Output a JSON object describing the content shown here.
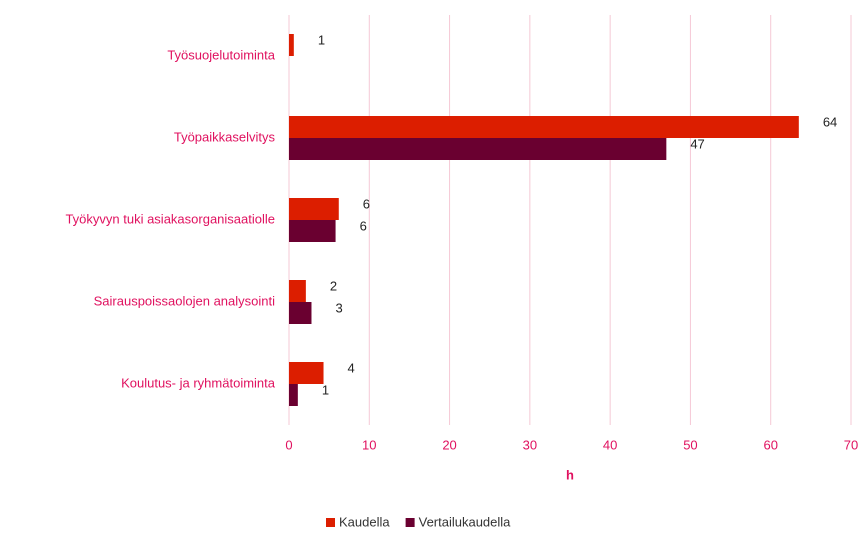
{
  "chart_data": {
    "type": "bar",
    "orientation": "horizontal",
    "categories": [
      "Työsuojelutoiminta",
      "Työpaikkaselvitys",
      "Työkyvyn tuki asiakasorganisaatiolle",
      "Sairauspoissaolojen analysointi",
      "Koulutus- ja ryhmätoiminta"
    ],
    "series": [
      {
        "name": "Kaudella",
        "color": "#dc1e00",
        "values": [
          0.6,
          63.5,
          6.2,
          2.1,
          4.3
        ],
        "value_labels": [
          "1",
          "64",
          "6",
          "2",
          "4"
        ]
      },
      {
        "name": "Vertailukaudella",
        "color": "#6a0030",
        "values": [
          null,
          47,
          5.8,
          2.8,
          1.1
        ],
        "value_labels": [
          null,
          "47",
          "6",
          "3",
          "1"
        ]
      }
    ],
    "xlabel": "h",
    "xlim": [
      0,
      70
    ],
    "xticks": [
      0,
      10,
      20,
      30,
      40,
      50,
      60,
      70
    ],
    "grid": true,
    "legend": "bottom"
  }
}
